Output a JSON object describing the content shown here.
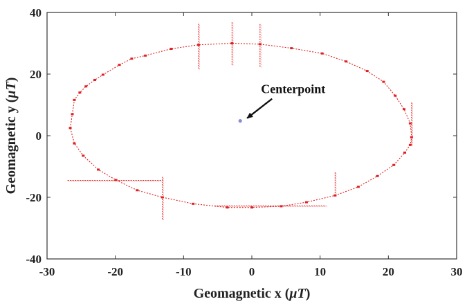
{
  "chart_data": {
    "type": "scatter",
    "title": "",
    "xlabel": "Geomagnetic x (μT)",
    "ylabel": "Geomagnetic y (μT)",
    "xlim": [
      -30,
      30
    ],
    "ylim": [
      -40,
      40
    ],
    "xticks": [
      "-30",
      "-20",
      "-10",
      "0",
      "10",
      "20",
      "30"
    ],
    "yticks": [
      "40",
      "20",
      "0",
      "-20",
      "-40"
    ],
    "grid": false,
    "legend": "none",
    "colors": {
      "series": "#e02020",
      "centerpoint": "#8a8ad8",
      "axes": "#333333",
      "text": "#222222"
    },
    "centerpoint": {
      "x": -1.7,
      "y": 4.8,
      "label": "Centerpoint"
    },
    "series": [
      {
        "style": "dotted-line-with-markers",
        "x": [
          -26.6,
          -26.3,
          -26.0,
          -25.2,
          -24.3,
          -23.0,
          -21.8,
          -19.4,
          -17.6,
          -15.6,
          -11.8,
          -7.8,
          -2.9,
          1.2,
          5.8,
          10.3,
          13.8,
          16.9,
          19.3,
          21.0,
          22.3,
          23.2,
          23.4,
          23.2,
          22.4,
          20.8,
          18.4,
          15.6,
          12.2,
          8.0,
          4.3,
          0.0,
          -3.6,
          -8.6,
          -13.1,
          -16.8,
          -19.9,
          -22.5,
          -24.7,
          -26.0
        ],
        "y": [
          2.5,
          7.0,
          11.6,
          14.0,
          16.0,
          18.1,
          19.8,
          23.0,
          25.0,
          26.0,
          28.2,
          29.5,
          30.0,
          29.7,
          28.4,
          26.7,
          24.1,
          21.0,
          17.5,
          13.0,
          8.6,
          4.0,
          -0.5,
          -3.0,
          -5.5,
          -9.5,
          -13.1,
          -16.6,
          -19.4,
          -21.6,
          -22.9,
          -23.3,
          -23.3,
          -22.1,
          -20.0,
          -17.7,
          -14.4,
          -11.0,
          -6.5,
          -2.5
        ]
      }
    ],
    "spikes": [
      {
        "x": [
          -7.8,
          -7.8
        ],
        "y": [
          21.7,
          36.6
        ]
      },
      {
        "x": [
          -2.9,
          -2.9
        ],
        "y": [
          23.0,
          36.9
        ]
      },
      {
        "x": [
          1.2,
          1.2
        ],
        "y": [
          22.4,
          36.5
        ]
      },
      {
        "x": [
          23.4,
          23.4
        ],
        "y": [
          -3.0,
          10.8
        ]
      },
      {
        "x": [
          12.2,
          12.2
        ],
        "y": [
          -19.4,
          -11.7
        ]
      },
      {
        "x": [
          -13.1,
          -13.1
        ],
        "y": [
          -27.2,
          -13.4
        ]
      },
      {
        "x": [
          -27.0,
          -13.1
        ],
        "y": [
          -14.5,
          -14.5
        ]
      },
      {
        "x": [
          -5.5,
          10.9
        ],
        "y": [
          -22.8,
          -22.8
        ]
      }
    ]
  }
}
